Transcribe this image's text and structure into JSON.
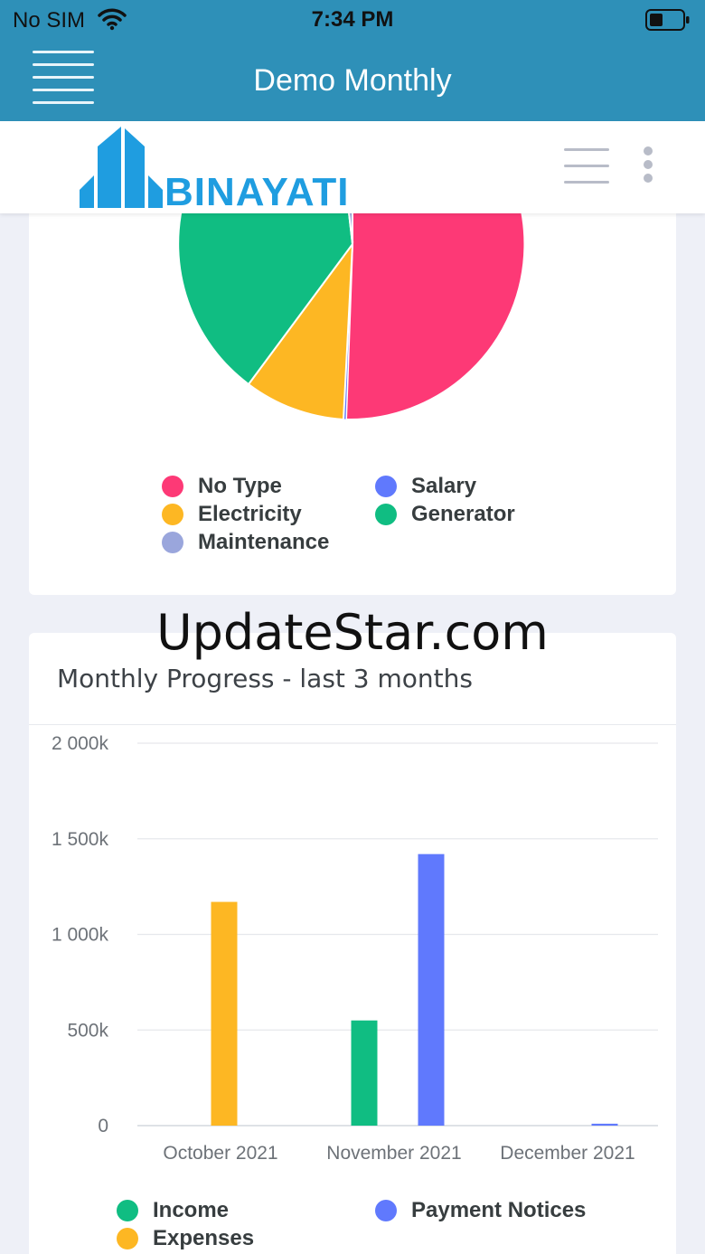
{
  "status_bar": {
    "carrier": "No SIM",
    "time": "7:34 PM"
  },
  "header": {
    "title": "Demo Monthly"
  },
  "brand": {
    "logo_text": "BINAYATI"
  },
  "pie_card": {
    "legend": [
      {
        "label": "No Type",
        "color": "#fd3976"
      },
      {
        "label": "Salary",
        "color": "#6079fd"
      },
      {
        "label": "Electricity",
        "color": "#fdb723"
      },
      {
        "label": "Generator",
        "color": "#10bd82"
      },
      {
        "label": "Maintenance",
        "color": "#9aa6dc"
      }
    ]
  },
  "watermark": "UpdateStar.com",
  "bar_card": {
    "title": "Monthly Progress - last 3 months"
  },
  "chart_data": {
    "type": "bar",
    "categories": [
      "October 2021",
      "November 2021",
      "December 2021"
    ],
    "series": [
      {
        "name": "Income",
        "color": "#10bd82",
        "values": [
          0,
          550000,
          0
        ]
      },
      {
        "name": "Expenses",
        "color": "#fdb723",
        "values": [
          1170000,
          0,
          0
        ]
      },
      {
        "name": "Payment Notices",
        "color": "#6079fd",
        "values": [
          0,
          1420000,
          10000
        ]
      }
    ],
    "yticks": [
      "0",
      "500k",
      "1 000k",
      "1 500k",
      "2 000k"
    ],
    "ylim": [
      0,
      2000000
    ],
    "legend": [
      {
        "label": "Income",
        "color": "#10bd82"
      },
      {
        "label": "Payment Notices",
        "color": "#6079fd"
      },
      {
        "label": "Expenses",
        "color": "#fdb723"
      }
    ]
  }
}
